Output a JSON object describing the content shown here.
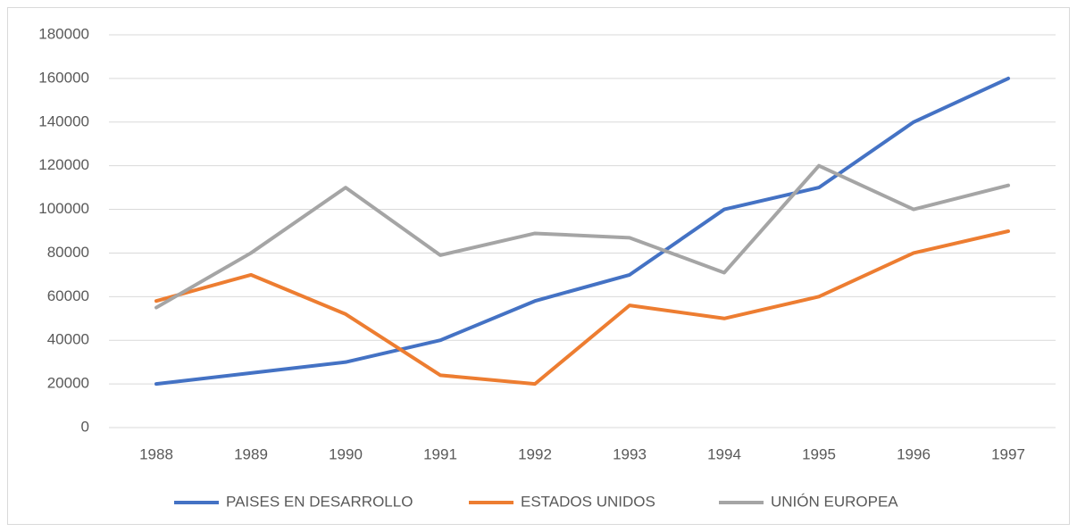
{
  "chart_data": {
    "type": "line",
    "categories": [
      "1988",
      "1989",
      "1990",
      "1991",
      "1992",
      "1993",
      "1994",
      "1995",
      "1996",
      "1997"
    ],
    "series": [
      {
        "name": "PAISES EN DESARROLLO",
        "color": "#4472c4",
        "values": [
          20000,
          25000,
          30000,
          40000,
          58000,
          70000,
          100000,
          110000,
          140000,
          160000
        ]
      },
      {
        "name": "ESTADOS UNIDOS",
        "color": "#ed7d31",
        "values": [
          58000,
          70000,
          52000,
          24000,
          20000,
          56000,
          50000,
          60000,
          80000,
          90000
        ]
      },
      {
        "name": "UNIÓN EUROPEA",
        "color": "#a5a5a5",
        "values": [
          55000,
          80000,
          110000,
          79000,
          89000,
          87000,
          71000,
          120000,
          100000,
          111000
        ]
      }
    ],
    "ylim": [
      0,
      180000
    ],
    "yticks": [
      0,
      20000,
      40000,
      60000,
      80000,
      100000,
      120000,
      140000,
      160000,
      180000
    ],
    "grid": true,
    "legend": "bottom"
  }
}
